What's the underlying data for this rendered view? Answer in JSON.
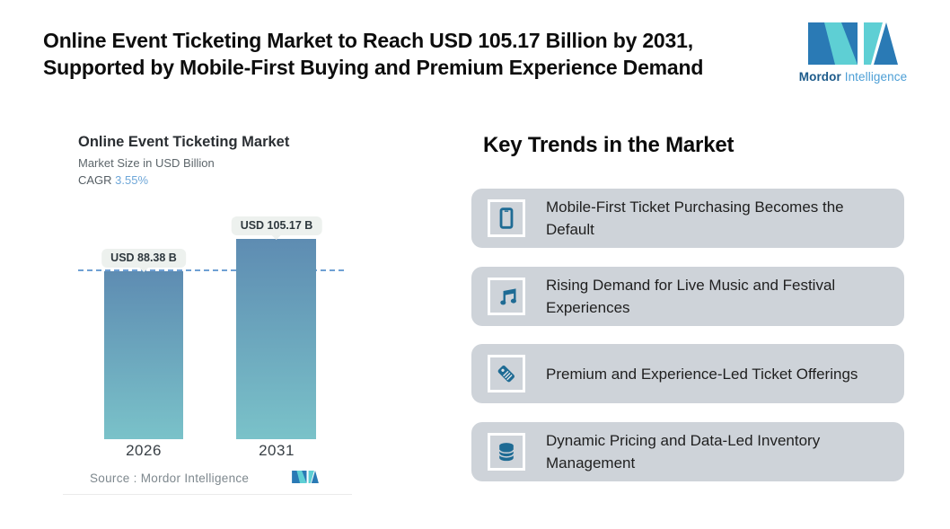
{
  "header": {
    "title_line1": "Online Event Ticketing Market to Reach USD 105.17 Billion by 2031,",
    "title_line2": "Supported by Mobile-First Buying and Premium Experience Demand",
    "brand_bold": "Mordor",
    "brand_regular": "Intelligence"
  },
  "chart": {
    "title": "Online Event Ticketing Market",
    "subtitle": "Market Size in USD Billion",
    "cagr_label": "CAGR ",
    "cagr_value": "3.55%",
    "source_text": "Source :  Mordor Intelligence"
  },
  "chart_data": {
    "type": "bar",
    "title": "Online Event Ticketing Market",
    "subtitle": "Market Size in USD Billion",
    "unit": "USD Billion",
    "cagr_percent": 3.55,
    "categories": [
      "2026",
      "2031"
    ],
    "values": [
      88.38,
      105.17
    ],
    "bar_labels": [
      "USD 88.38 B",
      "USD 105.17 B"
    ],
    "reference_line": 88.38,
    "ylim": [
      0,
      110
    ],
    "grid": false,
    "legend": false,
    "source": "Mordor Intelligence"
  },
  "trends": {
    "heading": "Key Trends in the Market",
    "items": [
      {
        "icon": "smartphone-icon",
        "text": "Mobile-First Ticket Purchasing Becomes the Default"
      },
      {
        "icon": "music-notes-icon",
        "text": "Rising Demand for Live Music and Festival Experiences"
      },
      {
        "icon": "price-tag-icon",
        "text": "Premium and Experience-Led Ticket Offerings"
      },
      {
        "icon": "database-icon",
        "text": "Dynamic Pricing and Data-Led Inventory Management"
      }
    ]
  },
  "colors": {
    "brand_blue": "#2a7ab5",
    "brand_teal": "#5ecfd4",
    "bar_top": "#5e8cb2",
    "bar_bottom": "#7ac2c9",
    "dashed_line": "#6fa0d4",
    "card_bg": "#ced3d9",
    "icon_color": "#1e6b94",
    "pill_bg": "#edf1ee",
    "cagr_value_color": "#6fa7d8"
  }
}
